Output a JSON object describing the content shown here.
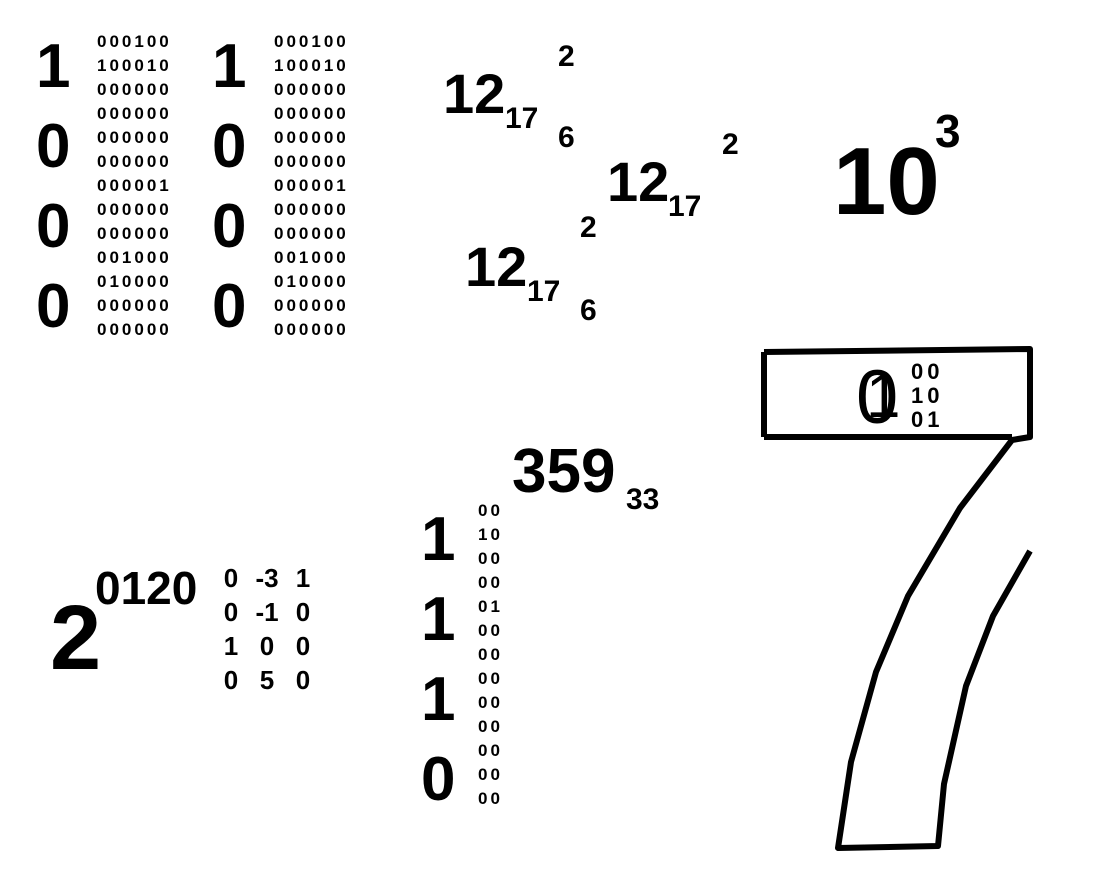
{
  "left_block_1": {
    "big_digits": [
      "1",
      "0",
      "0",
      "0"
    ],
    "rows": [
      "000100",
      "100010",
      "000000",
      "000000",
      "000000",
      "000000",
      "000001",
      "000000",
      "000000",
      "001000",
      "010000",
      "000000",
      "000000"
    ]
  },
  "left_block_2": {
    "big_digits": [
      "1",
      "0",
      "0",
      "0"
    ],
    "rows": [
      "000100",
      "100010",
      "000000",
      "000000",
      "000000",
      "000000",
      "000001",
      "000000",
      "000000",
      "001000",
      "010000",
      "000000",
      "000000"
    ]
  },
  "twelve_a": {
    "base": "12",
    "sub": "17",
    "sup": "2",
    "tail": "6"
  },
  "twelve_b": {
    "base": "12",
    "sub": "17",
    "sup": "2"
  },
  "twelve_c": {
    "base": "12",
    "sub": "17",
    "sup": "2",
    "tail": "6"
  },
  "ten_power": {
    "base": "10",
    "sup": "3"
  },
  "boxed_expr": {
    "overlap_a": "0",
    "overlap_b": "1",
    "rows": [
      "00",
      "10",
      "01"
    ]
  },
  "two_power": {
    "base": "2",
    "sup": "0120",
    "matrix": [
      [
        "0",
        "-3",
        "1"
      ],
      [
        "0",
        "-1",
        "0"
      ],
      [
        "1",
        "0",
        "0"
      ],
      [
        "0",
        "5",
        "0"
      ]
    ]
  },
  "three_five_nine": {
    "base": "359",
    "sub": "33"
  },
  "middle_block": {
    "big_digits": [
      "1",
      "1",
      "1",
      "0"
    ],
    "rows": [
      "00",
      "10",
      "00",
      "00",
      "01",
      "00",
      "00",
      "00",
      "00",
      "00",
      "00",
      "00",
      "00"
    ]
  },
  "big_seven": {
    "glyph": "7"
  }
}
